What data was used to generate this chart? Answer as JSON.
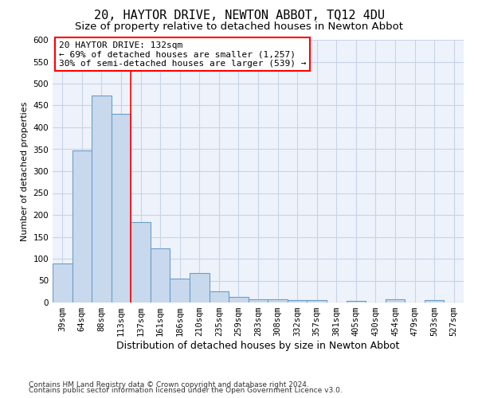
{
  "title": "20, HAYTOR DRIVE, NEWTON ABBOT, TQ12 4DU",
  "subtitle": "Size of property relative to detached houses in Newton Abbot",
  "xlabel": "Distribution of detached houses by size in Newton Abbot",
  "ylabel": "Number of detached properties",
  "categories": [
    "39sqm",
    "64sqm",
    "88sqm",
    "113sqm",
    "137sqm",
    "161sqm",
    "186sqm",
    "210sqm",
    "235sqm",
    "259sqm",
    "283sqm",
    "308sqm",
    "332sqm",
    "357sqm",
    "381sqm",
    "405sqm",
    "430sqm",
    "454sqm",
    "479sqm",
    "503sqm",
    "527sqm"
  ],
  "values": [
    90,
    347,
    473,
    430,
    183,
    123,
    55,
    67,
    25,
    13,
    8,
    7,
    5,
    5,
    0,
    4,
    0,
    8,
    0,
    5,
    0
  ],
  "bar_color": "#c9d9ed",
  "bar_edge_color": "#6b9ec7",
  "grid_color": "#c8d4e8",
  "bg_color": "#eef2fa",
  "annotation_box_text": "20 HAYTOR DRIVE: 132sqm\n← 69% of detached houses are smaller (1,257)\n30% of semi-detached houses are larger (539) →",
  "annotation_box_color": "white",
  "annotation_box_edge_color": "red",
  "vline_color": "red",
  "vline_x_index": 3,
  "ylim": [
    0,
    600
  ],
  "yticks": [
    0,
    50,
    100,
    150,
    200,
    250,
    300,
    350,
    400,
    450,
    500,
    550,
    600
  ],
  "footnote1": "Contains HM Land Registry data © Crown copyright and database right 2024.",
  "footnote2": "Contains public sector information licensed under the Open Government Licence v3.0.",
  "title_fontsize": 11,
  "subtitle_fontsize": 9.5,
  "xlabel_fontsize": 9,
  "ylabel_fontsize": 8,
  "tick_fontsize": 7.5,
  "annotation_fontsize": 8,
  "footnote_fontsize": 6.5
}
